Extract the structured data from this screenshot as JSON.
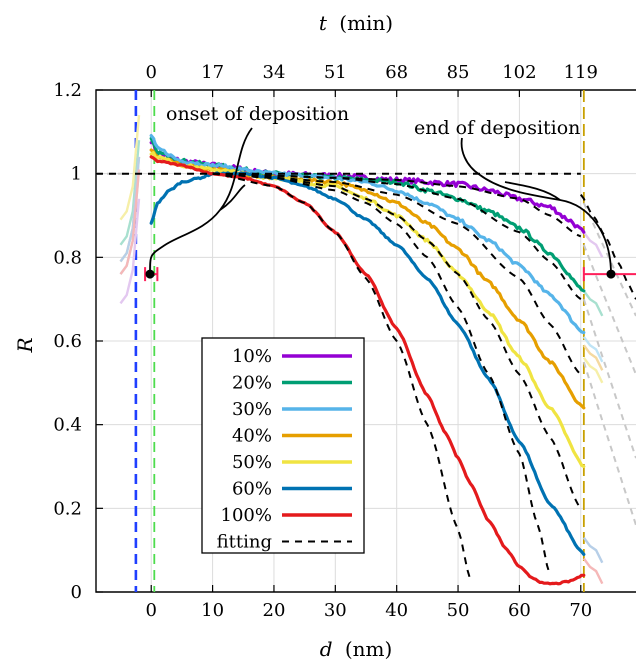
{
  "chart_data": {
    "type": "line",
    "xlabel": "d",
    "xlabel_unit": "(nm)",
    "ylabel": "R",
    "top_axis_label": "t",
    "top_axis_unit": "(min)",
    "xlim": [
      -9,
      79
    ],
    "ylim": [
      0,
      1.2
    ],
    "x_ticks": [
      0,
      10,
      20,
      30,
      40,
      50,
      60,
      70
    ],
    "y_ticks": [
      0,
      0.2,
      0.4,
      0.6,
      0.8,
      1,
      1.2
    ],
    "top_ticks": [
      {
        "label": "0",
        "d": 0
      },
      {
        "label": "17",
        "d": 10
      },
      {
        "label": "34",
        "d": 20
      },
      {
        "label": "51",
        "d": 30
      },
      {
        "label": "68",
        "d": 40
      },
      {
        "label": "85",
        "d": 50
      },
      {
        "label": "102",
        "d": 60
      },
      {
        "label": "119",
        "d": 70
      }
    ],
    "grid": true,
    "legend_position": "bottom-left",
    "annotations": [
      {
        "text": "onset of deposition",
        "d": 0
      },
      {
        "text": "end of deposition",
        "d": 70.5
      }
    ],
    "series": [
      {
        "name": "10%",
        "color": "#9400d3",
        "x": [
          0,
          1,
          5,
          10,
          20,
          30,
          40,
          50,
          55,
          60,
          65,
          68,
          70.5
        ],
        "y": [
          1.08,
          1.05,
          1.03,
          1.02,
          1.0,
          0.995,
          0.985,
          0.975,
          0.96,
          0.94,
          0.92,
          0.89,
          0.86
        ]
      },
      {
        "name": "20%",
        "color": "#009e73",
        "x": [
          0,
          1,
          5,
          10,
          20,
          30,
          35,
          40,
          45,
          50,
          55,
          60,
          65,
          70.5
        ],
        "y": [
          1.08,
          1.05,
          1.03,
          1.02,
          1.0,
          0.99,
          0.985,
          0.98,
          0.96,
          0.94,
          0.91,
          0.87,
          0.81,
          0.72
        ]
      },
      {
        "name": "30%",
        "color": "#56b4e9",
        "x": [
          0,
          1,
          5,
          10,
          20,
          30,
          35,
          40,
          45,
          50,
          55,
          60,
          65,
          70.5
        ],
        "y": [
          1.09,
          1.06,
          1.03,
          1.02,
          1.0,
          0.99,
          0.98,
          0.96,
          0.93,
          0.89,
          0.84,
          0.78,
          0.71,
          0.62
        ]
      },
      {
        "name": "40%",
        "color": "#e69f00",
        "x": [
          0,
          1,
          5,
          10,
          20,
          30,
          35,
          40,
          45,
          50,
          55,
          60,
          65,
          70.5
        ],
        "y": [
          1.06,
          1.04,
          1.02,
          1.01,
          0.99,
          0.98,
          0.96,
          0.93,
          0.88,
          0.82,
          0.74,
          0.65,
          0.55,
          0.44
        ]
      },
      {
        "name": "50%",
        "color": "#f0e442",
        "x": [
          0,
          1,
          5,
          10,
          20,
          30,
          35,
          40,
          45,
          50,
          55,
          60,
          65,
          70.5
        ],
        "y": [
          1.05,
          1.04,
          1.02,
          1.01,
          0.99,
          0.97,
          0.94,
          0.9,
          0.84,
          0.76,
          0.67,
          0.56,
          0.44,
          0.3
        ]
      },
      {
        "name": "60%",
        "color": "#0072b2",
        "x": [
          0,
          1,
          3,
          5,
          8,
          10,
          15,
          20,
          25,
          30,
          35,
          40,
          45,
          50,
          55,
          60,
          65,
          70.5
        ],
        "y": [
          0.88,
          0.93,
          0.96,
          0.98,
          0.99,
          1.0,
          1.0,
          0.99,
          0.97,
          0.94,
          0.89,
          0.83,
          0.75,
          0.64,
          0.51,
          0.36,
          0.21,
          0.09
        ]
      },
      {
        "name": "100%",
        "color": "#e41a1c",
        "x": [
          0,
          1,
          5,
          10,
          15,
          20,
          25,
          30,
          35,
          40,
          45,
          48,
          50,
          52,
          55,
          58,
          60,
          62,
          64,
          66,
          68,
          70.5
        ],
        "y": [
          1.04,
          1.03,
          1.02,
          1.0,
          0.99,
          0.97,
          0.93,
          0.86,
          0.76,
          0.63,
          0.47,
          0.38,
          0.32,
          0.26,
          0.17,
          0.1,
          0.06,
          0.035,
          0.02,
          0.02,
          0.025,
          0.04
        ]
      },
      {
        "name": "fitting",
        "color": "#000000",
        "dashed": true,
        "curves": [
          {
            "x": [
              -9,
              0,
              10,
              20,
              30,
              40,
              50,
              60,
              70
            ],
            "y": [
              1.0,
              1.0,
              1.0,
              1.0,
              1.0,
              1.0,
              1.0,
              1.0,
              1.0
            ]
          },
          {
            "x": [
              10,
              20,
              30,
              40,
              50,
              60,
              65,
              70
            ],
            "y": [
              1.0,
              0.995,
              0.99,
              0.985,
              0.97,
              0.94,
              0.9,
              0.85
            ]
          },
          {
            "x": [
              10,
              20,
              30,
              40,
              50,
              60,
              65,
              70
            ],
            "y": [
              1.0,
              0.995,
              0.99,
              0.975,
              0.94,
              0.86,
              0.79,
              0.7
            ]
          },
          {
            "x": [
              10,
              20,
              30,
              40,
              50,
              60,
              65,
              70
            ],
            "y": [
              1.0,
              0.99,
              0.98,
              0.95,
              0.88,
              0.75,
              0.64,
              0.52
            ]
          },
          {
            "x": [
              10,
              20,
              30,
              35,
              40,
              45,
              50,
              55,
              60,
              65,
              70
            ],
            "y": [
              1.0,
              0.99,
              0.97,
              0.94,
              0.9,
              0.84,
              0.76,
              0.65,
              0.52,
              0.37,
              0.2
            ]
          },
          {
            "x": [
              10,
              20,
              30,
              35,
              40,
              45,
              50,
              55,
              60,
              63,
              65
            ],
            "y": [
              1.0,
              0.99,
              0.96,
              0.93,
              0.88,
              0.8,
              0.68,
              0.52,
              0.33,
              0.16,
              0.04
            ]
          },
          {
            "x": [
              10,
              20,
              25,
              30,
              35,
              40,
              45,
              50,
              52
            ],
            "y": [
              1.0,
              0.97,
              0.93,
              0.86,
              0.75,
              0.6,
              0.4,
              0.15,
              0.03
            ]
          },
          {
            "x": [
              70,
              72,
              74,
              76,
              78,
              79
            ],
            "y": [
              0.95,
              0.9,
              0.85,
              0.79,
              0.73,
              0.7
            ]
          }
        ]
      }
    ],
    "faint_extensions_color": "#cccccc",
    "markers": {
      "blue_dashed_line_d": -2.5,
      "green_dashed_line_d": 0.5,
      "gold_dashed_line_d": 70.5
    }
  }
}
